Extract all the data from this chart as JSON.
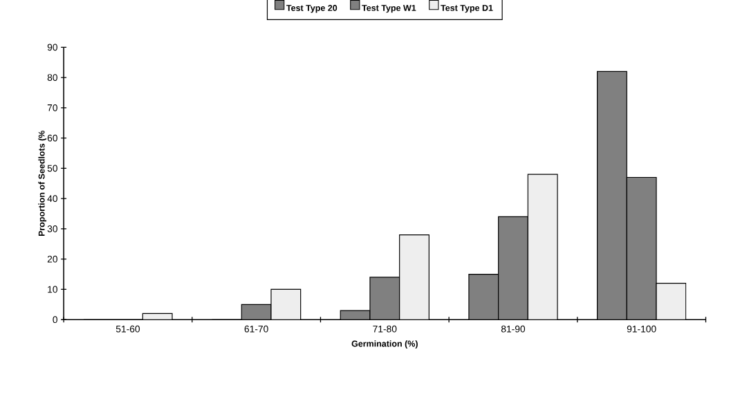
{
  "chart_data": {
    "type": "bar",
    "xlabel": "Germination (%)",
    "ylabel": "Proportion of Seedlots (%",
    "categories": [
      "51-60",
      "61-70",
      "71-80",
      "81-90",
      "91-100"
    ],
    "series": [
      {
        "name": "Test Type 20",
        "color": "#808080",
        "values": [
          0,
          0,
          3,
          15,
          82
        ]
      },
      {
        "name": "Test Type W1",
        "color": "#808080",
        "values": [
          0,
          5,
          14,
          34,
          47
        ]
      },
      {
        "name": "Test Type D1",
        "color": "#eeeeee",
        "values": [
          2,
          10,
          28,
          48,
          12
        ]
      }
    ],
    "ylim": [
      0,
      90
    ],
    "yticks": [
      0,
      10,
      20,
      30,
      40,
      50,
      60,
      70,
      80,
      90
    ],
    "grid": false,
    "legend": "top"
  }
}
